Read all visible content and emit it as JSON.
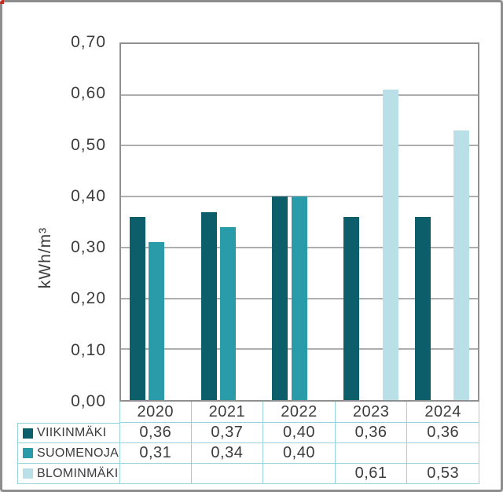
{
  "window": {
    "background": "#ffffff",
    "frame_border_color": "#8d8d8d",
    "recording_dot_color": "#c52b20"
  },
  "colors": {
    "series_viikinmaki": "#0d5e6b",
    "series_suomenoja": "#2a9ba8",
    "series_blominmaki": "#b9dfe7",
    "gridline": "#aeaeae",
    "plot_border": "#909090",
    "table_border": "#96d3dd",
    "text": "#3c3c3c"
  },
  "chart_data": {
    "type": "bar",
    "title": "",
    "xlabel": "",
    "ylabel": "kWh/m³",
    "categories": [
      "2020",
      "2021",
      "2022",
      "2023",
      "2024"
    ],
    "series": [
      {
        "name": "VIIKINMÄKI",
        "color": "#0d5e6b",
        "values": [
          0.36,
          0.37,
          0.4,
          0.36,
          0.36
        ],
        "display": [
          "0,36",
          "0,37",
          "0,40",
          "0,36",
          "0,36"
        ]
      },
      {
        "name": "SUOMENOJA",
        "color": "#2a9ba8",
        "values": [
          0.31,
          0.34,
          0.4,
          null,
          null
        ],
        "display": [
          "0,31",
          "0,34",
          "0,40",
          "",
          ""
        ]
      },
      {
        "name": "BLOMINMÄKI",
        "color": "#b9dfe7",
        "values": [
          null,
          null,
          null,
          0.61,
          0.53
        ],
        "display": [
          "",
          "",
          "",
          "0,61",
          "0,53"
        ]
      }
    ],
    "ylim": [
      0,
      0.7
    ],
    "ytick_step": 0.1,
    "yticks": [
      "0,00",
      "0,10",
      "0,20",
      "0,30",
      "0,40",
      "0,50",
      "0,60",
      "0,70"
    ],
    "grid": true,
    "legend_position": "table-left-column"
  }
}
